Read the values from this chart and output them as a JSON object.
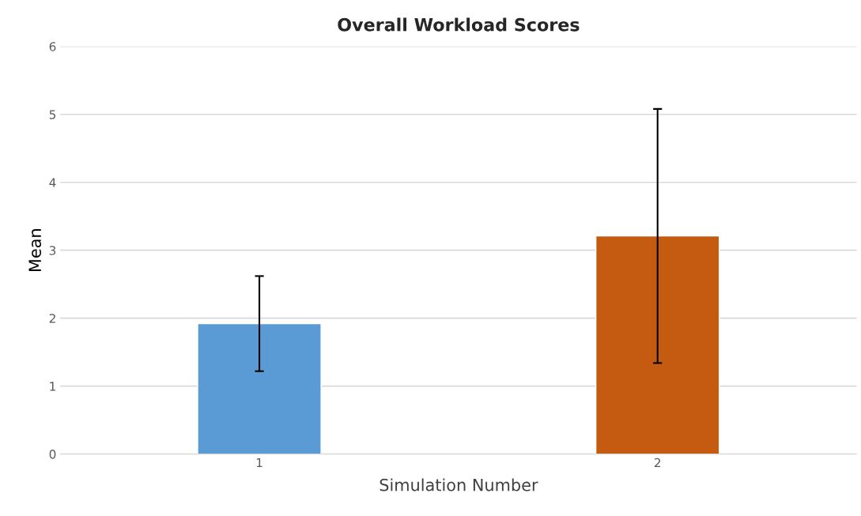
{
  "chart_data": {
    "type": "bar",
    "title": "Overall Workload Scores",
    "xlabel": "Simulation Number",
    "ylabel": "Mean",
    "categories": [
      "1",
      "2"
    ],
    "values": [
      1.92,
      3.21
    ],
    "colors": [
      "#5b9bd5",
      "#c55a11"
    ],
    "errors": [
      0.7,
      1.87
    ],
    "ylim": [
      0,
      6
    ],
    "yticks": [
      0,
      1,
      2,
      3,
      4,
      5,
      6
    ],
    "grid": "y",
    "legend": false
  }
}
